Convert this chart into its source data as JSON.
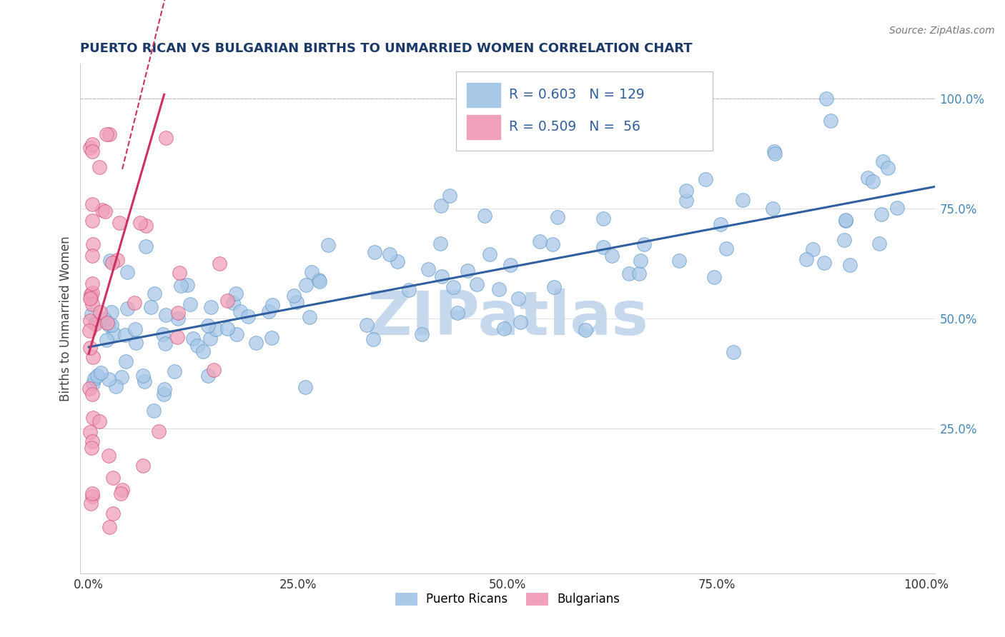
{
  "title": "PUERTO RICAN VS BULGARIAN BIRTHS TO UNMARRIED WOMEN CORRELATION CHART",
  "source": "Source: ZipAtlas.com",
  "ylabel": "Births to Unmarried Women",
  "xlim": [
    -0.01,
    1.01
  ],
  "ylim": [
    -0.08,
    1.08
  ],
  "xticks": [
    0.0,
    0.25,
    0.5,
    0.75,
    1.0
  ],
  "yticks": [
    0.25,
    0.5,
    0.75,
    1.0
  ],
  "xtick_labels": [
    "0.0%",
    "25.0%",
    "50.0%",
    "75.0%",
    "100.0%"
  ],
  "ytick_labels": [
    "25.0%",
    "50.0%",
    "75.0%",
    "100.0%"
  ],
  "blue_R": 0.603,
  "blue_N": 129,
  "pink_R": 0.509,
  "pink_N": 56,
  "blue_color": "#a8c8e8",
  "pink_color": "#f0a0b8",
  "blue_edge_color": "#5090c0",
  "pink_edge_color": "#d04070",
  "blue_line_color": "#3060a0",
  "pink_line_color": "#d03060",
  "watermark": "ZIPatlas",
  "watermark_color": "#c5d8ec",
  "title_color": "#1a3a6a",
  "source_color": "#777777",
  "tick_color_y": "#4488bb",
  "tick_color_x": "#333333",
  "legend_color": "#3060a0",
  "grid_color": "#e0e0e0"
}
